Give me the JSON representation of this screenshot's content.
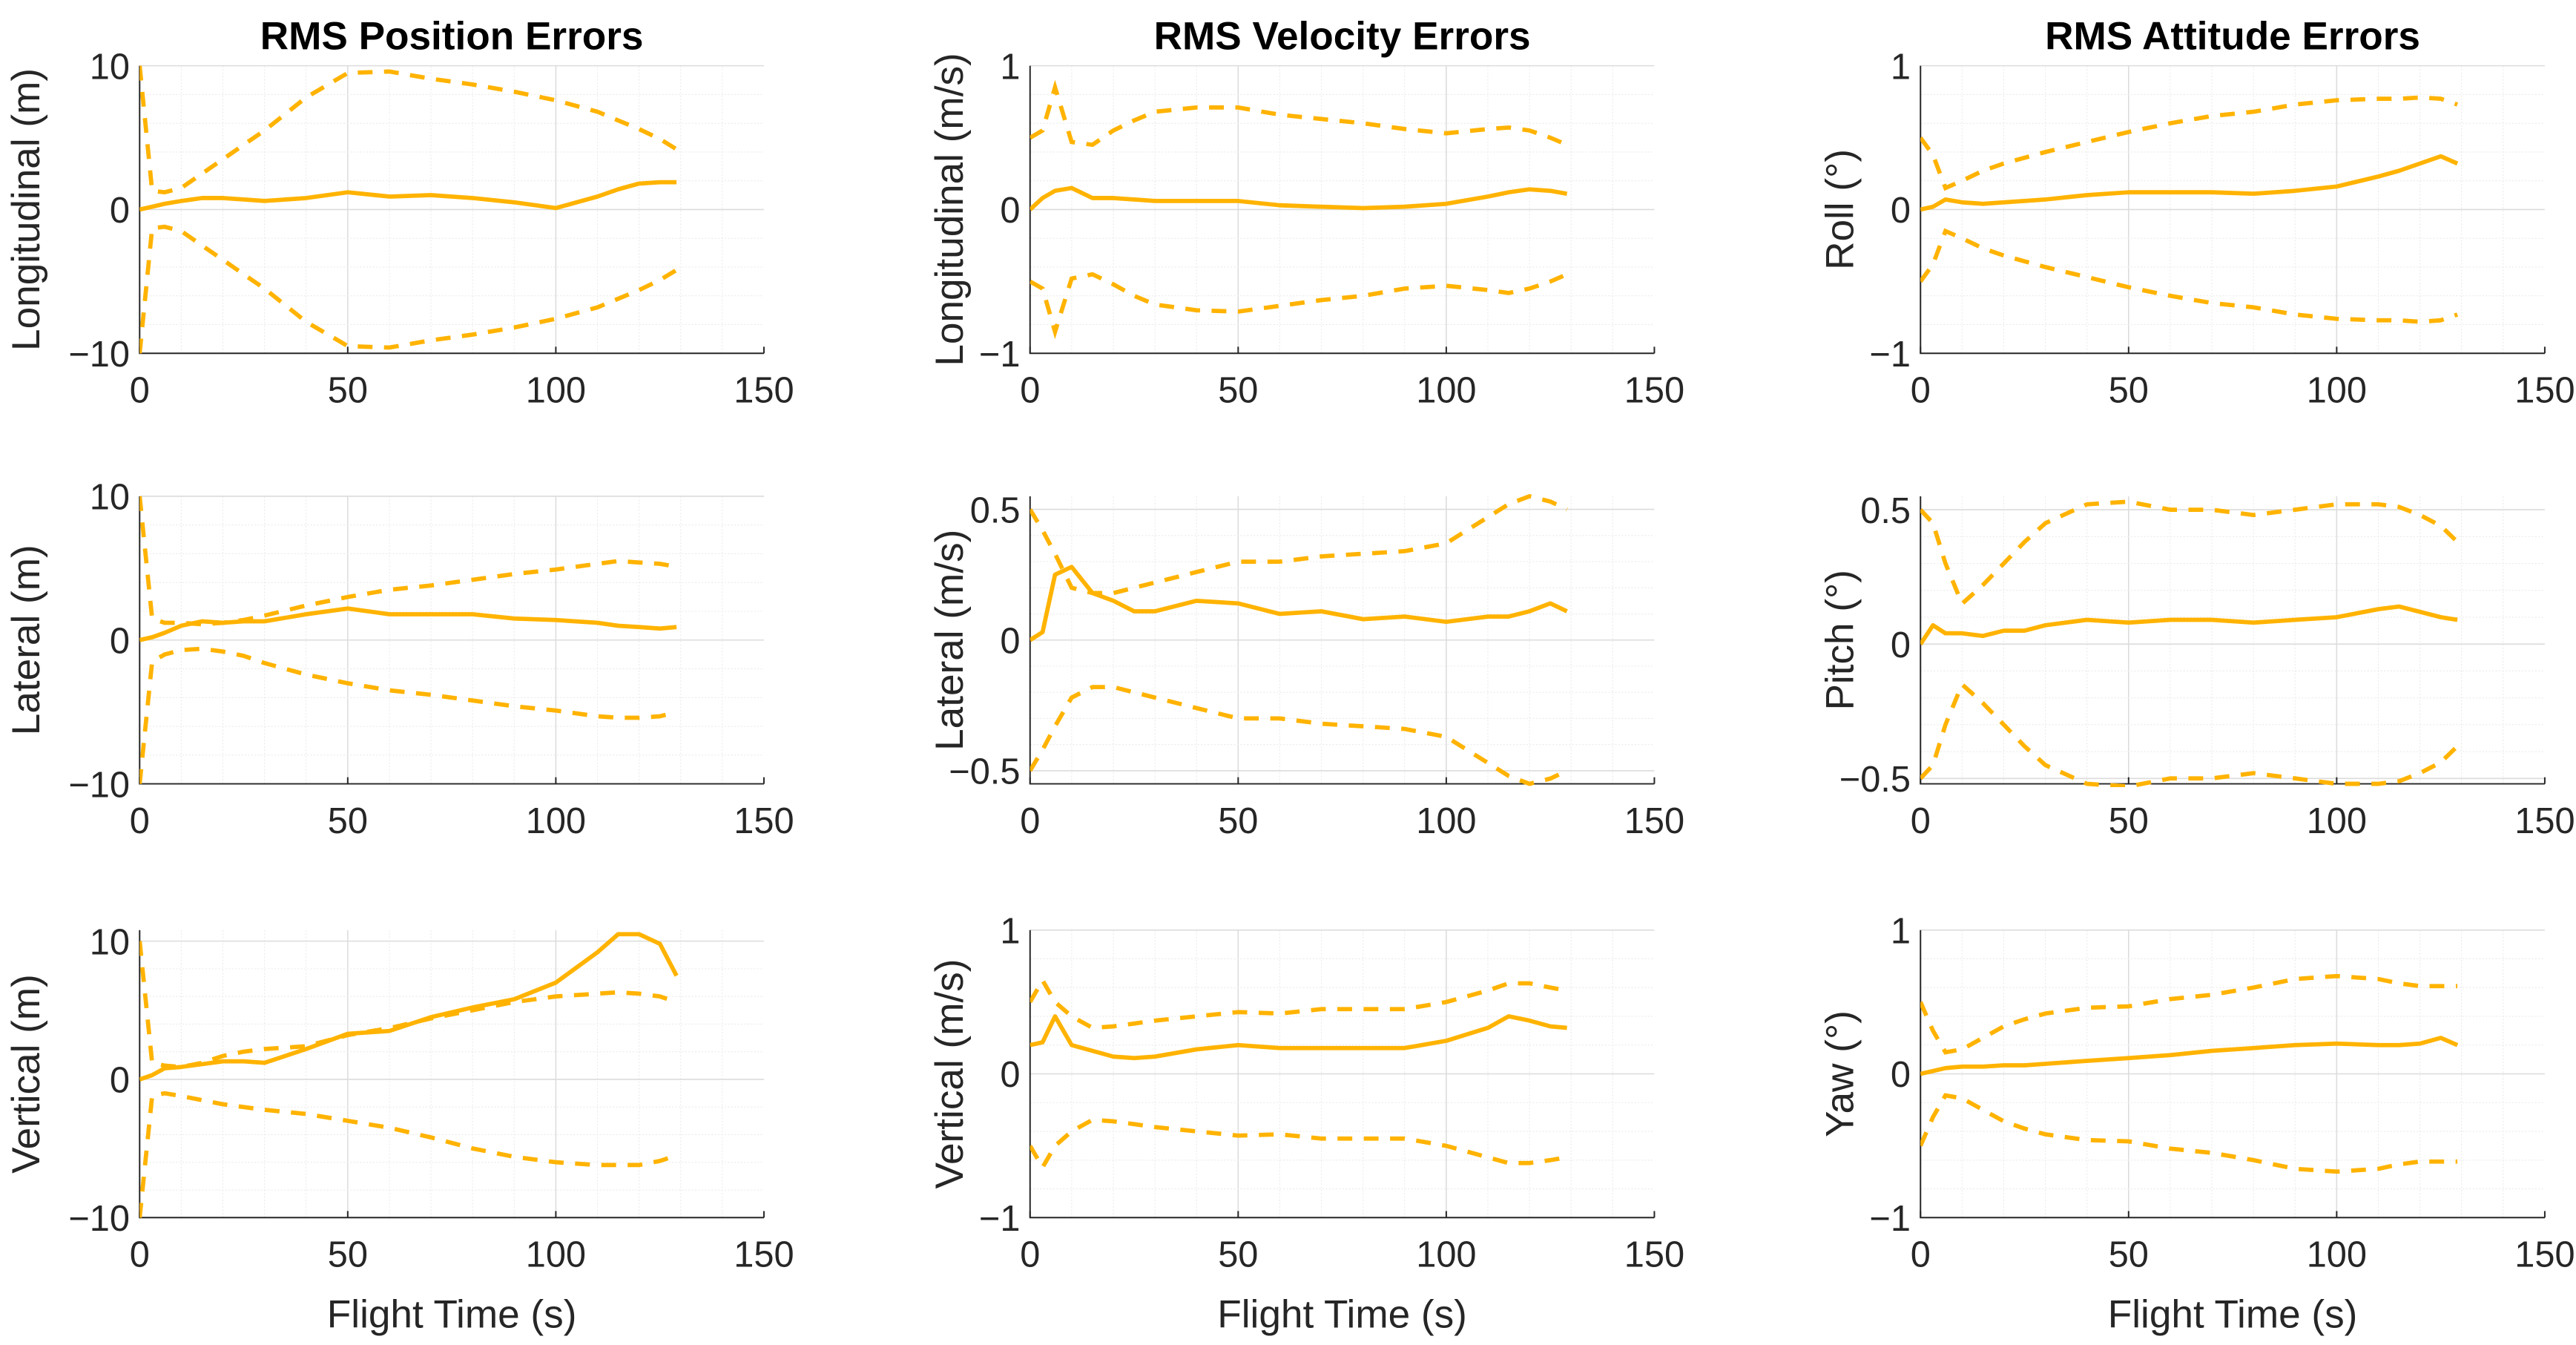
{
  "chart_data": {
    "type": "line",
    "layout": "3x3 grid",
    "line_color": "#FFB300",
    "xlabel": "Flight Time (s)",
    "xlim": [
      0,
      150
    ],
    "xticks": [
      0,
      50,
      100,
      150
    ],
    "grid": true,
    "column_titles": [
      "RMS Position Errors",
      "RMS Velocity Errors",
      "RMS Attitude Errors"
    ],
    "series_legend": {
      "mean": "solid",
      "upper": "dashed",
      "lower": "dashed"
    },
    "x": [
      0,
      3,
      6,
      10,
      15,
      20,
      25,
      30,
      40,
      50,
      60,
      70,
      80,
      90,
      100,
      110,
      115,
      120,
      125,
      129
    ],
    "panels": [
      {
        "column": 0,
        "row": 0,
        "ylabel": "Longitudinal (m)",
        "ylim": [
          -10,
          10
        ],
        "yticks": [
          -10,
          0,
          10
        ],
        "ytick_labels": [
          "−10",
          "0",
          "10"
        ],
        "mean": [
          0,
          0.2,
          0.4,
          0.6,
          0.8,
          0.8,
          0.7,
          0.6,
          0.8,
          1.2,
          0.9,
          1.0,
          0.8,
          0.5,
          0.1,
          0.9,
          1.4,
          1.8,
          1.9,
          1.9
        ],
        "upper": [
          10,
          1.3,
          1.2,
          1.5,
          2.5,
          3.5,
          4.5,
          5.5,
          7.8,
          9.5,
          9.6,
          9.1,
          8.7,
          8.2,
          7.6,
          6.8,
          6.2,
          5.6,
          4.9,
          4.2
        ],
        "lower": [
          -10,
          -1.3,
          -1.2,
          -1.5,
          -2.5,
          -3.5,
          -4.5,
          -5.5,
          -7.8,
          -9.5,
          -9.6,
          -9.1,
          -8.7,
          -8.2,
          -7.6,
          -6.8,
          -6.2,
          -5.6,
          -4.9,
          -4.2
        ]
      },
      {
        "column": 0,
        "row": 1,
        "ylabel": "Lateral (m)",
        "ylim": [
          -10,
          10
        ],
        "yticks": [
          -10,
          0,
          10
        ],
        "ytick_labels": [
          "−10",
          "0",
          "10"
        ],
        "mean": [
          0,
          0.2,
          0.5,
          1.0,
          1.3,
          1.2,
          1.3,
          1.3,
          1.8,
          2.2,
          1.8,
          1.8,
          1.8,
          1.5,
          1.4,
          1.2,
          1.0,
          0.9,
          0.8,
          0.9
        ],
        "upper": [
          10,
          1.5,
          1.2,
          1.2,
          1.1,
          1.2,
          1.4,
          1.7,
          2.4,
          3.0,
          3.5,
          3.8,
          4.2,
          4.6,
          4.9,
          5.3,
          5.5,
          5.4,
          5.3,
          5.1
        ],
        "lower": [
          -10,
          -1.5,
          -1.0,
          -0.7,
          -0.6,
          -0.8,
          -1.1,
          -1.6,
          -2.4,
          -3.0,
          -3.5,
          -3.8,
          -4.2,
          -4.6,
          -4.9,
          -5.3,
          -5.4,
          -5.4,
          -5.3,
          -5.0
        ]
      },
      {
        "column": 0,
        "row": 2,
        "ylabel": "Vertical (m)",
        "ylim": [
          -10,
          10.8
        ],
        "yticks": [
          -10,
          0,
          10
        ],
        "ytick_labels": [
          "−10",
          "0",
          "10"
        ],
        "mean": [
          0,
          0.3,
          0.8,
          0.9,
          1.1,
          1.3,
          1.3,
          1.2,
          2.2,
          3.3,
          3.5,
          4.5,
          5.2,
          5.8,
          7.0,
          9.2,
          10.5,
          10.5,
          9.8,
          7.5
        ],
        "upper": [
          10,
          1.2,
          1.0,
          0.9,
          1.2,
          1.7,
          2.0,
          2.2,
          2.4,
          3.2,
          3.7,
          4.4,
          5.0,
          5.6,
          6.0,
          6.2,
          6.3,
          6.2,
          6.0,
          5.6
        ],
        "lower": [
          -10,
          -1.2,
          -1.0,
          -1.2,
          -1.5,
          -1.8,
          -2.0,
          -2.2,
          -2.5,
          -3.0,
          -3.5,
          -4.2,
          -5.0,
          -5.6,
          -6.0,
          -6.2,
          -6.2,
          -6.2,
          -5.9,
          -5.5
        ]
      },
      {
        "column": 1,
        "row": 0,
        "ylabel": "Longitudinal (m/s)",
        "ylim": [
          -1,
          1
        ],
        "yticks": [
          -1,
          0,
          1
        ],
        "ytick_labels": [
          "−1",
          "0",
          "1"
        ],
        "mean": [
          0,
          0.08,
          0.13,
          0.15,
          0.08,
          0.08,
          0.07,
          0.06,
          0.06,
          0.06,
          0.03,
          0.02,
          0.01,
          0.02,
          0.04,
          0.09,
          0.12,
          0.14,
          0.13,
          0.11
        ],
        "upper": [
          0.5,
          0.55,
          0.85,
          0.47,
          0.45,
          0.55,
          0.62,
          0.68,
          0.71,
          0.71,
          0.66,
          0.63,
          0.6,
          0.56,
          0.53,
          0.56,
          0.57,
          0.55,
          0.5,
          0.45
        ],
        "lower": [
          -0.5,
          -0.55,
          -0.85,
          -0.48,
          -0.45,
          -0.52,
          -0.6,
          -0.66,
          -0.7,
          -0.71,
          -0.67,
          -0.63,
          -0.6,
          -0.55,
          -0.53,
          -0.56,
          -0.58,
          -0.55,
          -0.5,
          -0.45
        ]
      },
      {
        "column": 1,
        "row": 1,
        "ylabel": "Lateral (m/s)",
        "ylim": [
          -0.55,
          0.55
        ],
        "yticks": [
          -0.5,
          0,
          0.5
        ],
        "ytick_labels": [
          "−0.5",
          "0",
          "0.5"
        ],
        "mean": [
          0,
          0.03,
          0.25,
          0.28,
          0.18,
          0.15,
          0.11,
          0.11,
          0.15,
          0.14,
          0.1,
          0.11,
          0.08,
          0.09,
          0.07,
          0.09,
          0.09,
          0.11,
          0.14,
          0.11
        ],
        "upper": [
          0.5,
          0.42,
          0.33,
          0.2,
          0.18,
          0.18,
          0.2,
          0.22,
          0.26,
          0.3,
          0.3,
          0.32,
          0.33,
          0.34,
          0.37,
          0.47,
          0.52,
          0.55,
          0.53,
          0.5
        ],
        "lower": [
          -0.5,
          -0.42,
          -0.33,
          -0.22,
          -0.18,
          -0.18,
          -0.2,
          -0.22,
          -0.26,
          -0.3,
          -0.3,
          -0.32,
          -0.33,
          -0.34,
          -0.37,
          -0.47,
          -0.52,
          -0.55,
          -0.53,
          -0.5
        ]
      },
      {
        "column": 1,
        "row": 2,
        "ylabel": "Vertical (m/s)",
        "ylim": [
          -1,
          1
        ],
        "yticks": [
          -1,
          0,
          1
        ],
        "ytick_labels": [
          "−1",
          "0",
          "1"
        ],
        "mean": [
          0.2,
          0.22,
          0.4,
          0.2,
          0.16,
          0.12,
          0.11,
          0.12,
          0.17,
          0.2,
          0.18,
          0.18,
          0.18,
          0.18,
          0.23,
          0.32,
          0.4,
          0.37,
          0.33,
          0.32
        ],
        "upper": [
          0.5,
          0.65,
          0.5,
          0.4,
          0.32,
          0.33,
          0.35,
          0.37,
          0.4,
          0.43,
          0.42,
          0.45,
          0.45,
          0.45,
          0.5,
          0.58,
          0.63,
          0.63,
          0.6,
          0.58
        ],
        "lower": [
          -0.5,
          -0.65,
          -0.5,
          -0.4,
          -0.32,
          -0.33,
          -0.35,
          -0.37,
          -0.4,
          -0.43,
          -0.42,
          -0.45,
          -0.45,
          -0.45,
          -0.5,
          -0.58,
          -0.62,
          -0.62,
          -0.6,
          -0.58
        ]
      },
      {
        "column": 2,
        "row": 0,
        "ylabel": "Roll (°)",
        "ylim": [
          -1,
          1
        ],
        "yticks": [
          -1,
          0,
          1
        ],
        "ytick_labels": [
          "−1",
          "0",
          "1"
        ],
        "mean": [
          0,
          0.02,
          0.07,
          0.05,
          0.04,
          0.05,
          0.06,
          0.07,
          0.1,
          0.12,
          0.12,
          0.12,
          0.11,
          0.13,
          0.16,
          0.23,
          0.27,
          0.32,
          0.37,
          0.32
        ],
        "upper": [
          0.5,
          0.38,
          0.15,
          0.2,
          0.27,
          0.32,
          0.36,
          0.4,
          0.47,
          0.54,
          0.6,
          0.65,
          0.68,
          0.73,
          0.76,
          0.77,
          0.77,
          0.78,
          0.77,
          0.73
        ],
        "lower": [
          -0.5,
          -0.38,
          -0.15,
          -0.2,
          -0.27,
          -0.32,
          -0.36,
          -0.4,
          -0.47,
          -0.54,
          -0.6,
          -0.65,
          -0.68,
          -0.73,
          -0.76,
          -0.77,
          -0.77,
          -0.78,
          -0.77,
          -0.73
        ]
      },
      {
        "column": 2,
        "row": 1,
        "ylabel": "Pitch (°)",
        "ylim": [
          -0.52,
          0.55
        ],
        "yticks": [
          -0.5,
          0,
          0.5
        ],
        "ytick_labels": [
          "−0.5",
          "0",
          "0.5"
        ],
        "mean": [
          0,
          0.07,
          0.04,
          0.04,
          0.03,
          0.05,
          0.05,
          0.07,
          0.09,
          0.08,
          0.09,
          0.09,
          0.08,
          0.09,
          0.1,
          0.13,
          0.14,
          0.12,
          0.1,
          0.09
        ],
        "upper": [
          0.5,
          0.45,
          0.3,
          0.15,
          0.22,
          0.3,
          0.38,
          0.45,
          0.52,
          0.53,
          0.5,
          0.5,
          0.48,
          0.5,
          0.52,
          0.52,
          0.51,
          0.48,
          0.44,
          0.38
        ],
        "lower": [
          -0.5,
          -0.45,
          -0.3,
          -0.15,
          -0.22,
          -0.3,
          -0.38,
          -0.45,
          -0.52,
          -0.53,
          -0.5,
          -0.5,
          -0.48,
          -0.5,
          -0.52,
          -0.52,
          -0.51,
          -0.48,
          -0.44,
          -0.38
        ]
      },
      {
        "column": 2,
        "row": 2,
        "ylabel": "Yaw (°)",
        "ylim": [
          -1,
          1
        ],
        "yticks": [
          -1,
          0,
          1
        ],
        "ytick_labels": [
          "−1",
          "0",
          "1"
        ],
        "mean": [
          0,
          0.02,
          0.04,
          0.05,
          0.05,
          0.06,
          0.06,
          0.07,
          0.09,
          0.11,
          0.13,
          0.16,
          0.18,
          0.2,
          0.21,
          0.2,
          0.2,
          0.21,
          0.25,
          0.2
        ],
        "upper": [
          0.5,
          0.3,
          0.15,
          0.17,
          0.25,
          0.33,
          0.38,
          0.42,
          0.46,
          0.47,
          0.52,
          0.55,
          0.6,
          0.66,
          0.68,
          0.66,
          0.63,
          0.61,
          0.61,
          0.61
        ],
        "lower": [
          -0.5,
          -0.3,
          -0.15,
          -0.17,
          -0.25,
          -0.33,
          -0.38,
          -0.42,
          -0.46,
          -0.47,
          -0.52,
          -0.55,
          -0.6,
          -0.66,
          -0.68,
          -0.66,
          -0.63,
          -0.61,
          -0.61,
          -0.61
        ]
      }
    ]
  }
}
